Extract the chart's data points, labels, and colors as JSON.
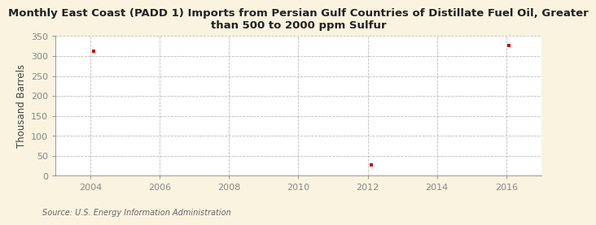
{
  "title": "Monthly East Coast (PADD 1) Imports from Persian Gulf Countries of Distillate Fuel Oil, Greater\nthan 500 to 2000 ppm Sulfur",
  "ylabel": "Thousand Barrels",
  "source": "Source: U.S. Energy Information Administration",
  "figure_bg_color": "#FAF3E0",
  "plot_bg_color": "#FFFFFF",
  "data_x": [
    2004.1,
    2012.1,
    2016.08
  ],
  "data_y": [
    312,
    28,
    326
  ],
  "marker_color": "#CC0000",
  "marker": "s",
  "marker_size": 3.5,
  "xlim": [
    2003.0,
    2017.0
  ],
  "ylim": [
    0,
    350
  ],
  "xticks": [
    2004,
    2006,
    2008,
    2010,
    2012,
    2014,
    2016
  ],
  "yticks": [
    0,
    50,
    100,
    150,
    200,
    250,
    300,
    350
  ],
  "grid_color": "#AAAAAA",
  "grid_style": "--",
  "grid_alpha": 0.8,
  "grid_linewidth": 0.6,
  "title_fontsize": 9.5,
  "title_fontweight": "bold",
  "ylabel_fontsize": 8.5,
  "tick_fontsize": 8,
  "source_fontsize": 7,
  "spine_color": "#888888",
  "tick_color": "#888888"
}
